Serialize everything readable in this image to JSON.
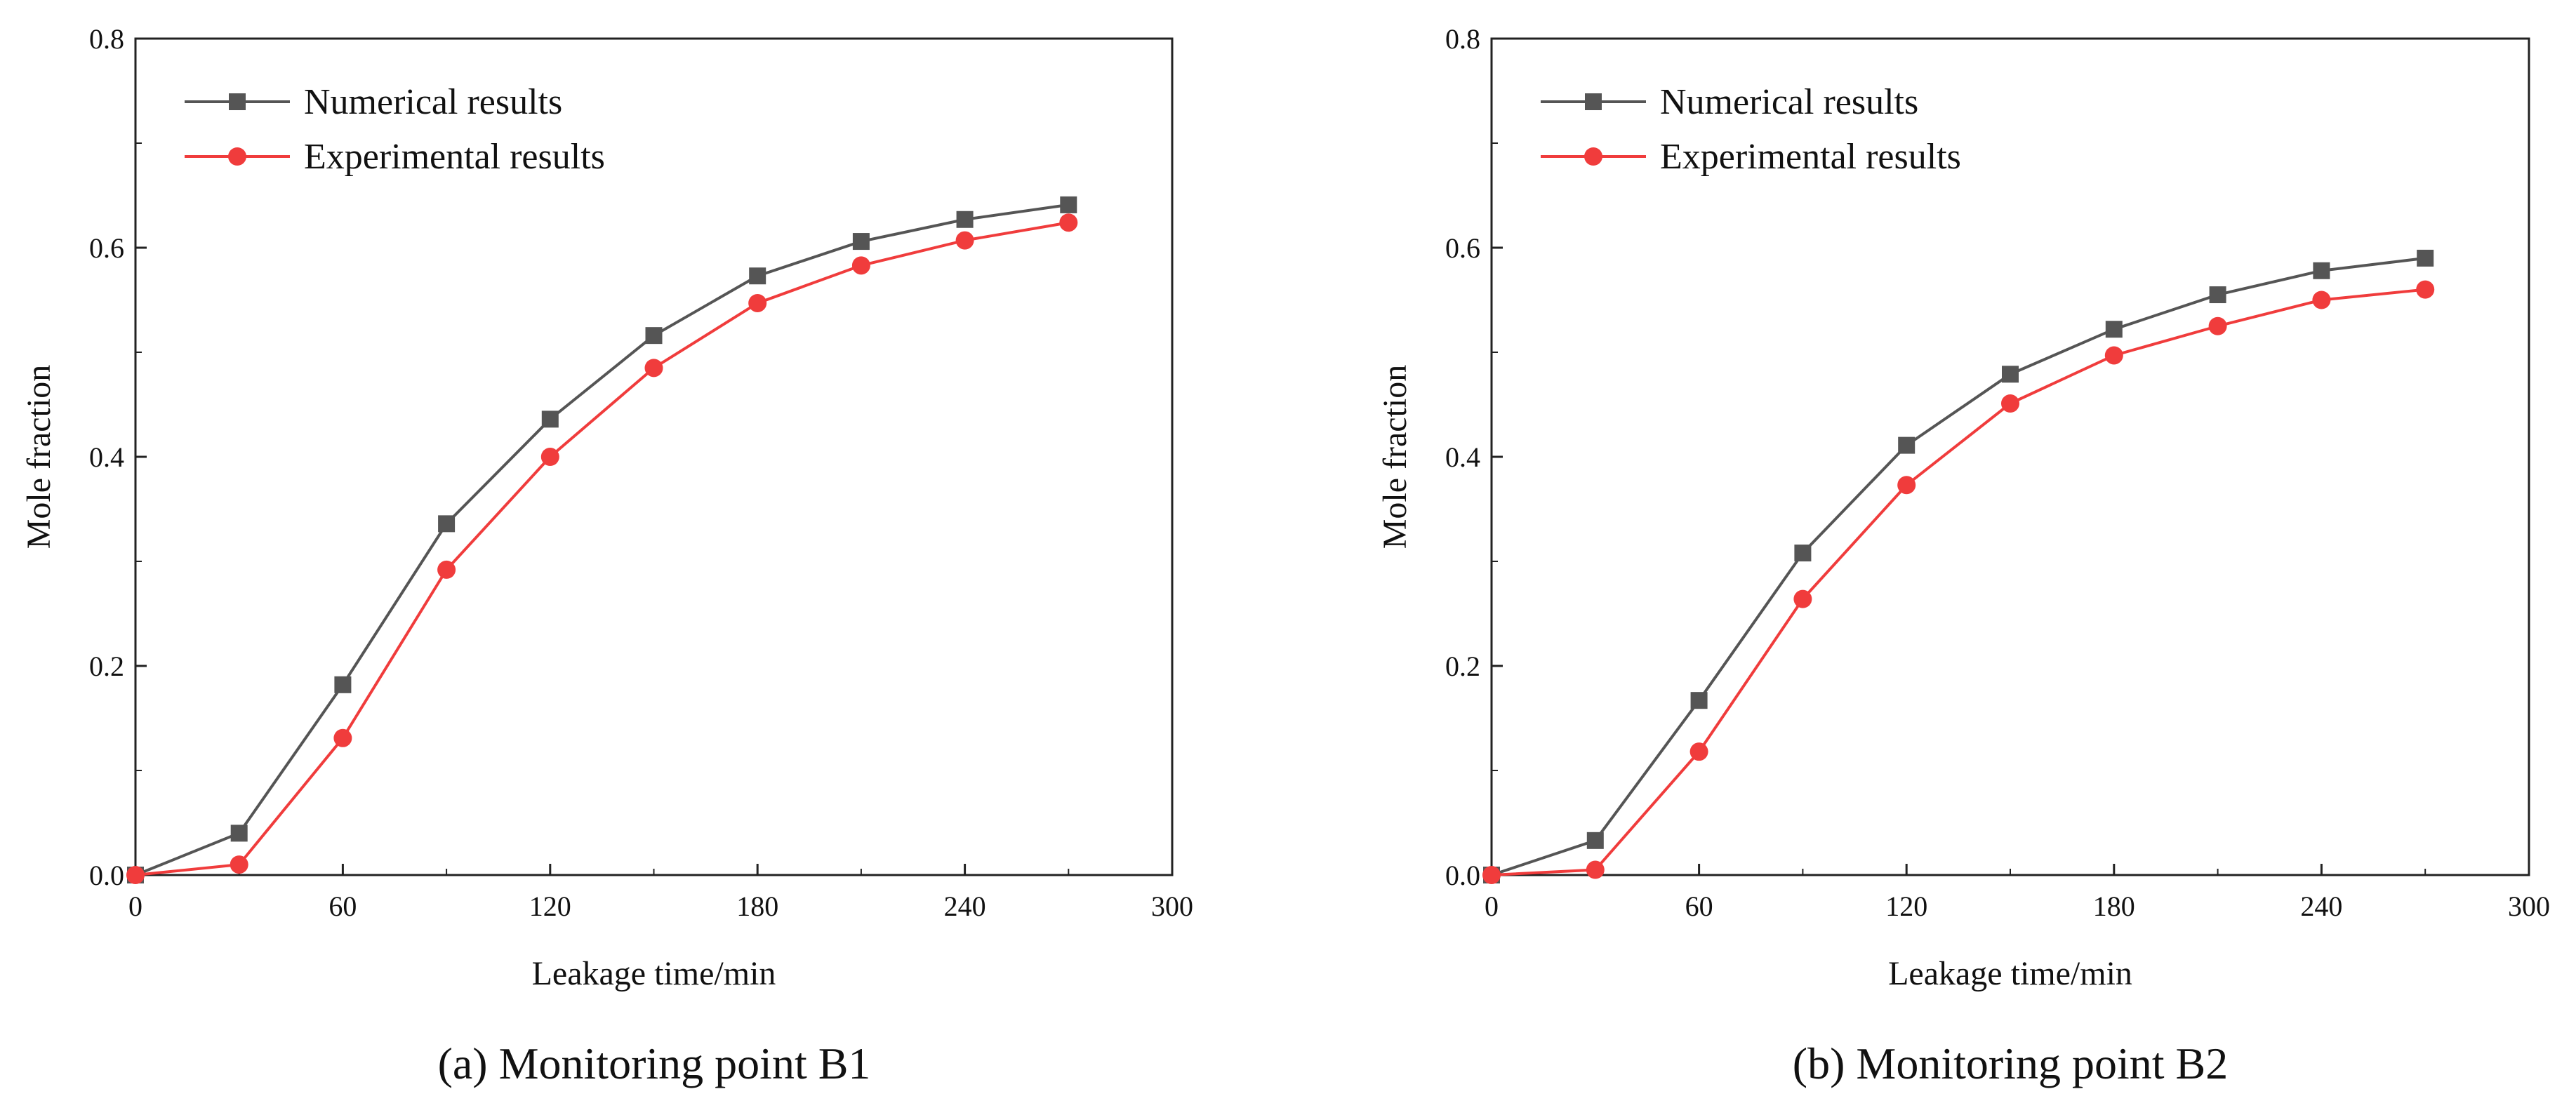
{
  "chart_data": [
    {
      "type": "line",
      "caption": "(a) Monitoring point B1",
      "xlabel": "Leakage time/min",
      "ylabel": "Mole fraction",
      "xlim": [
        0,
        300
      ],
      "ylim": [
        0,
        0.8
      ],
      "xticks": [
        "0",
        "60",
        "120",
        "180",
        "240",
        "300"
      ],
      "yticks": [
        "0.0",
        "0.2",
        "0.4",
        "0.6",
        "0.8"
      ],
      "grid": false,
      "legend_position": "top-left",
      "series": [
        {
          "name": "Numerical results",
          "color": "#555555",
          "marker": "square",
          "x": [
            0,
            30,
            60,
            90,
            120,
            150,
            180,
            210,
            240,
            270
          ],
          "y": [
            0.0,
            0.04,
            0.182,
            0.336,
            0.436,
            0.516,
            0.573,
            0.606,
            0.627,
            0.641
          ]
        },
        {
          "name": "Experimental results",
          "color": "#f03c3c",
          "marker": "circle",
          "x": [
            0,
            30,
            60,
            90,
            120,
            150,
            180,
            210,
            240,
            270
          ],
          "y": [
            0.0,
            0.01,
            0.131,
            0.292,
            0.4,
            0.485,
            0.547,
            0.583,
            0.607,
            0.624
          ]
        }
      ]
    },
    {
      "type": "line",
      "caption": "(b) Monitoring point B2",
      "xlabel": "Leakage time/min",
      "ylabel": "Mole fraction",
      "xlim": [
        0,
        300
      ],
      "ylim": [
        0,
        0.8
      ],
      "xticks": [
        "0",
        "60",
        "120",
        "180",
        "240",
        "300"
      ],
      "yticks": [
        "0.0",
        "0.2",
        "0.4",
        "0.6",
        "0.8"
      ],
      "grid": false,
      "legend_position": "top-left",
      "series": [
        {
          "name": "Numerical results",
          "color": "#555555",
          "marker": "square",
          "x": [
            0,
            30,
            60,
            90,
            120,
            150,
            180,
            210,
            240,
            270
          ],
          "y": [
            0.0,
            0.033,
            0.167,
            0.308,
            0.411,
            0.479,
            0.522,
            0.555,
            0.578,
            0.59
          ]
        },
        {
          "name": "Experimental results",
          "color": "#f03c3c",
          "marker": "circle",
          "x": [
            0,
            30,
            60,
            90,
            120,
            150,
            180,
            210,
            240,
            270
          ],
          "y": [
            0.0,
            0.005,
            0.118,
            0.264,
            0.373,
            0.451,
            0.497,
            0.525,
            0.55,
            0.56
          ]
        }
      ]
    }
  ]
}
